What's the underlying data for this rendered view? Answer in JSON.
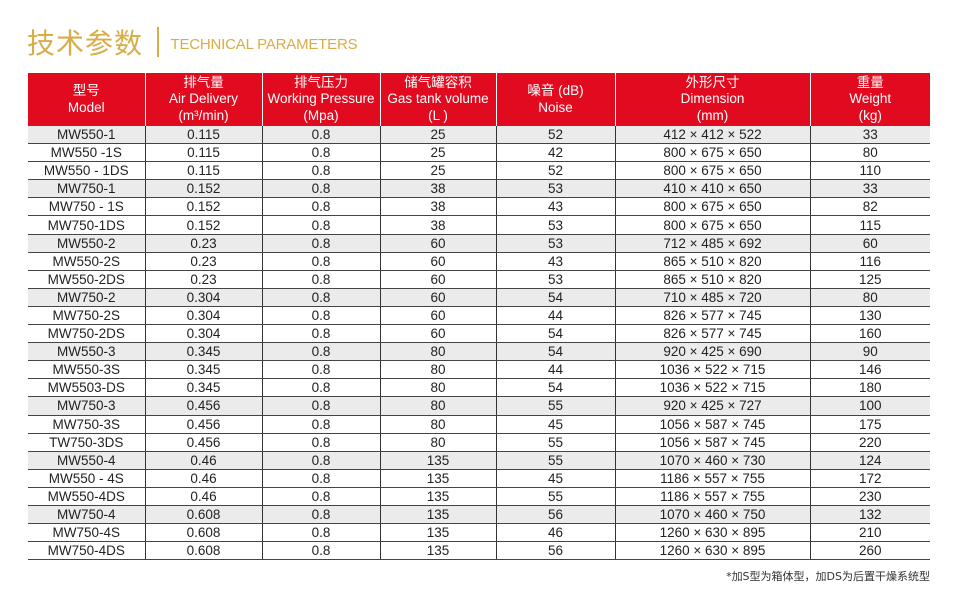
{
  "title": {
    "cn": "技术参数",
    "en": "TECHNICAL PARAMETERS"
  },
  "headers": [
    {
      "cn": "型号",
      "en": "Model",
      "unit": ""
    },
    {
      "cn": "排气量",
      "en": "Air Delivery",
      "unit": "(m³/min)"
    },
    {
      "cn": "排气压力",
      "en": "Working Pressure",
      "unit": "(Mpa)"
    },
    {
      "cn": "储气罐容积",
      "en": "Gas tank volume",
      "unit": "(L )"
    },
    {
      "cn": "噪音 (dB)",
      "en": "Noise",
      "unit": ""
    },
    {
      "cn": "外形尺寸",
      "en": "Dimension",
      "unit": "(mm)"
    },
    {
      "cn": "重量",
      "en": "Weight",
      "unit": "(kg)"
    }
  ],
  "rows": [
    [
      "MW550-1",
      "0.115",
      "0.8",
      "25",
      "52",
      "412 × 412 × 522",
      "33"
    ],
    [
      "MW550 -1S",
      "0.115",
      "0.8",
      "25",
      "42",
      "800 × 675 × 650",
      "80"
    ],
    [
      "MW550 - 1DS",
      "0.115",
      "0.8",
      "25",
      "52",
      "800 × 675 × 650",
      "110"
    ],
    [
      "MW750-1",
      "0.152",
      "0.8",
      "38",
      "53",
      "410 × 410 × 650",
      "33"
    ],
    [
      "MW750 - 1S",
      "0.152",
      "0.8",
      "38",
      "43",
      "800 × 675 × 650",
      "82"
    ],
    [
      "MW750-1DS",
      "0.152",
      "0.8",
      "38",
      "53",
      "800 × 675 × 650",
      "115"
    ],
    [
      "MW550-2",
      "0.23",
      "0.8",
      "60",
      "53",
      "712 × 485 × 692",
      "60"
    ],
    [
      "MW550-2S",
      "0.23",
      "0.8",
      "60",
      "43",
      "865 × 510 × 820",
      "116"
    ],
    [
      "MW550-2DS",
      "0.23",
      "0.8",
      "60",
      "53",
      "865 × 510 × 820",
      "125"
    ],
    [
      "MW750-2",
      "0.304",
      "0.8",
      "60",
      "54",
      "710 × 485 × 720",
      "80"
    ],
    [
      "MW750-2S",
      "0.304",
      "0.8",
      "60",
      "44",
      "826 × 577 × 745",
      "130"
    ],
    [
      "MW750-2DS",
      "0.304",
      "0.8",
      "60",
      "54",
      "826 × 577 × 745",
      "160"
    ],
    [
      "MW550-3",
      "0.345",
      "0.8",
      "80",
      "54",
      "920 × 425 × 690",
      "90"
    ],
    [
      "MW550-3S",
      "0.345",
      "0.8",
      "80",
      "44",
      "1036 × 522 × 715",
      "146"
    ],
    [
      "MW5503-DS",
      "0.345",
      "0.8",
      "80",
      "54",
      "1036 × 522 × 715",
      "180"
    ],
    [
      "MW750-3",
      "0.456",
      "0.8",
      "80",
      "55",
      "920 × 425 × 727",
      "100"
    ],
    [
      "MW750-3S",
      "0.456",
      "0.8",
      "80",
      "45",
      "1056 × 587 × 745",
      "175"
    ],
    [
      "TW750-3DS",
      "0.456",
      "0.8",
      "80",
      "55",
      "1056 × 587 × 745",
      "220"
    ],
    [
      "MW550-4",
      "0.46",
      "0.8",
      "135",
      "55",
      "1070 × 460 × 730",
      "124"
    ],
    [
      "MW550 - 4S",
      "0.46",
      "0.8",
      "135",
      "45",
      "1186 × 557 × 755",
      "172"
    ],
    [
      "MW550-4DS",
      "0.46",
      "0.8",
      "135",
      "55",
      "1186 × 557 × 755",
      "230"
    ],
    [
      "MW750-4",
      "0.608",
      "0.8",
      "135",
      "56",
      "1070 × 460 × 750",
      "132"
    ],
    [
      "MW750-4S",
      "0.608",
      "0.8",
      "135",
      "46",
      "1260 × 630 × 895",
      "210"
    ],
    [
      "MW750-4DS",
      "0.608",
      "0.8",
      "135",
      "56",
      "1260 × 630 × 895",
      "260"
    ]
  ],
  "note": "*加S型为箱体型，加DS为后置干燥系统型",
  "colors": {
    "header_bg": "#e10a1e",
    "title": "#d9ad45",
    "shade_row": "#ebebeb"
  }
}
